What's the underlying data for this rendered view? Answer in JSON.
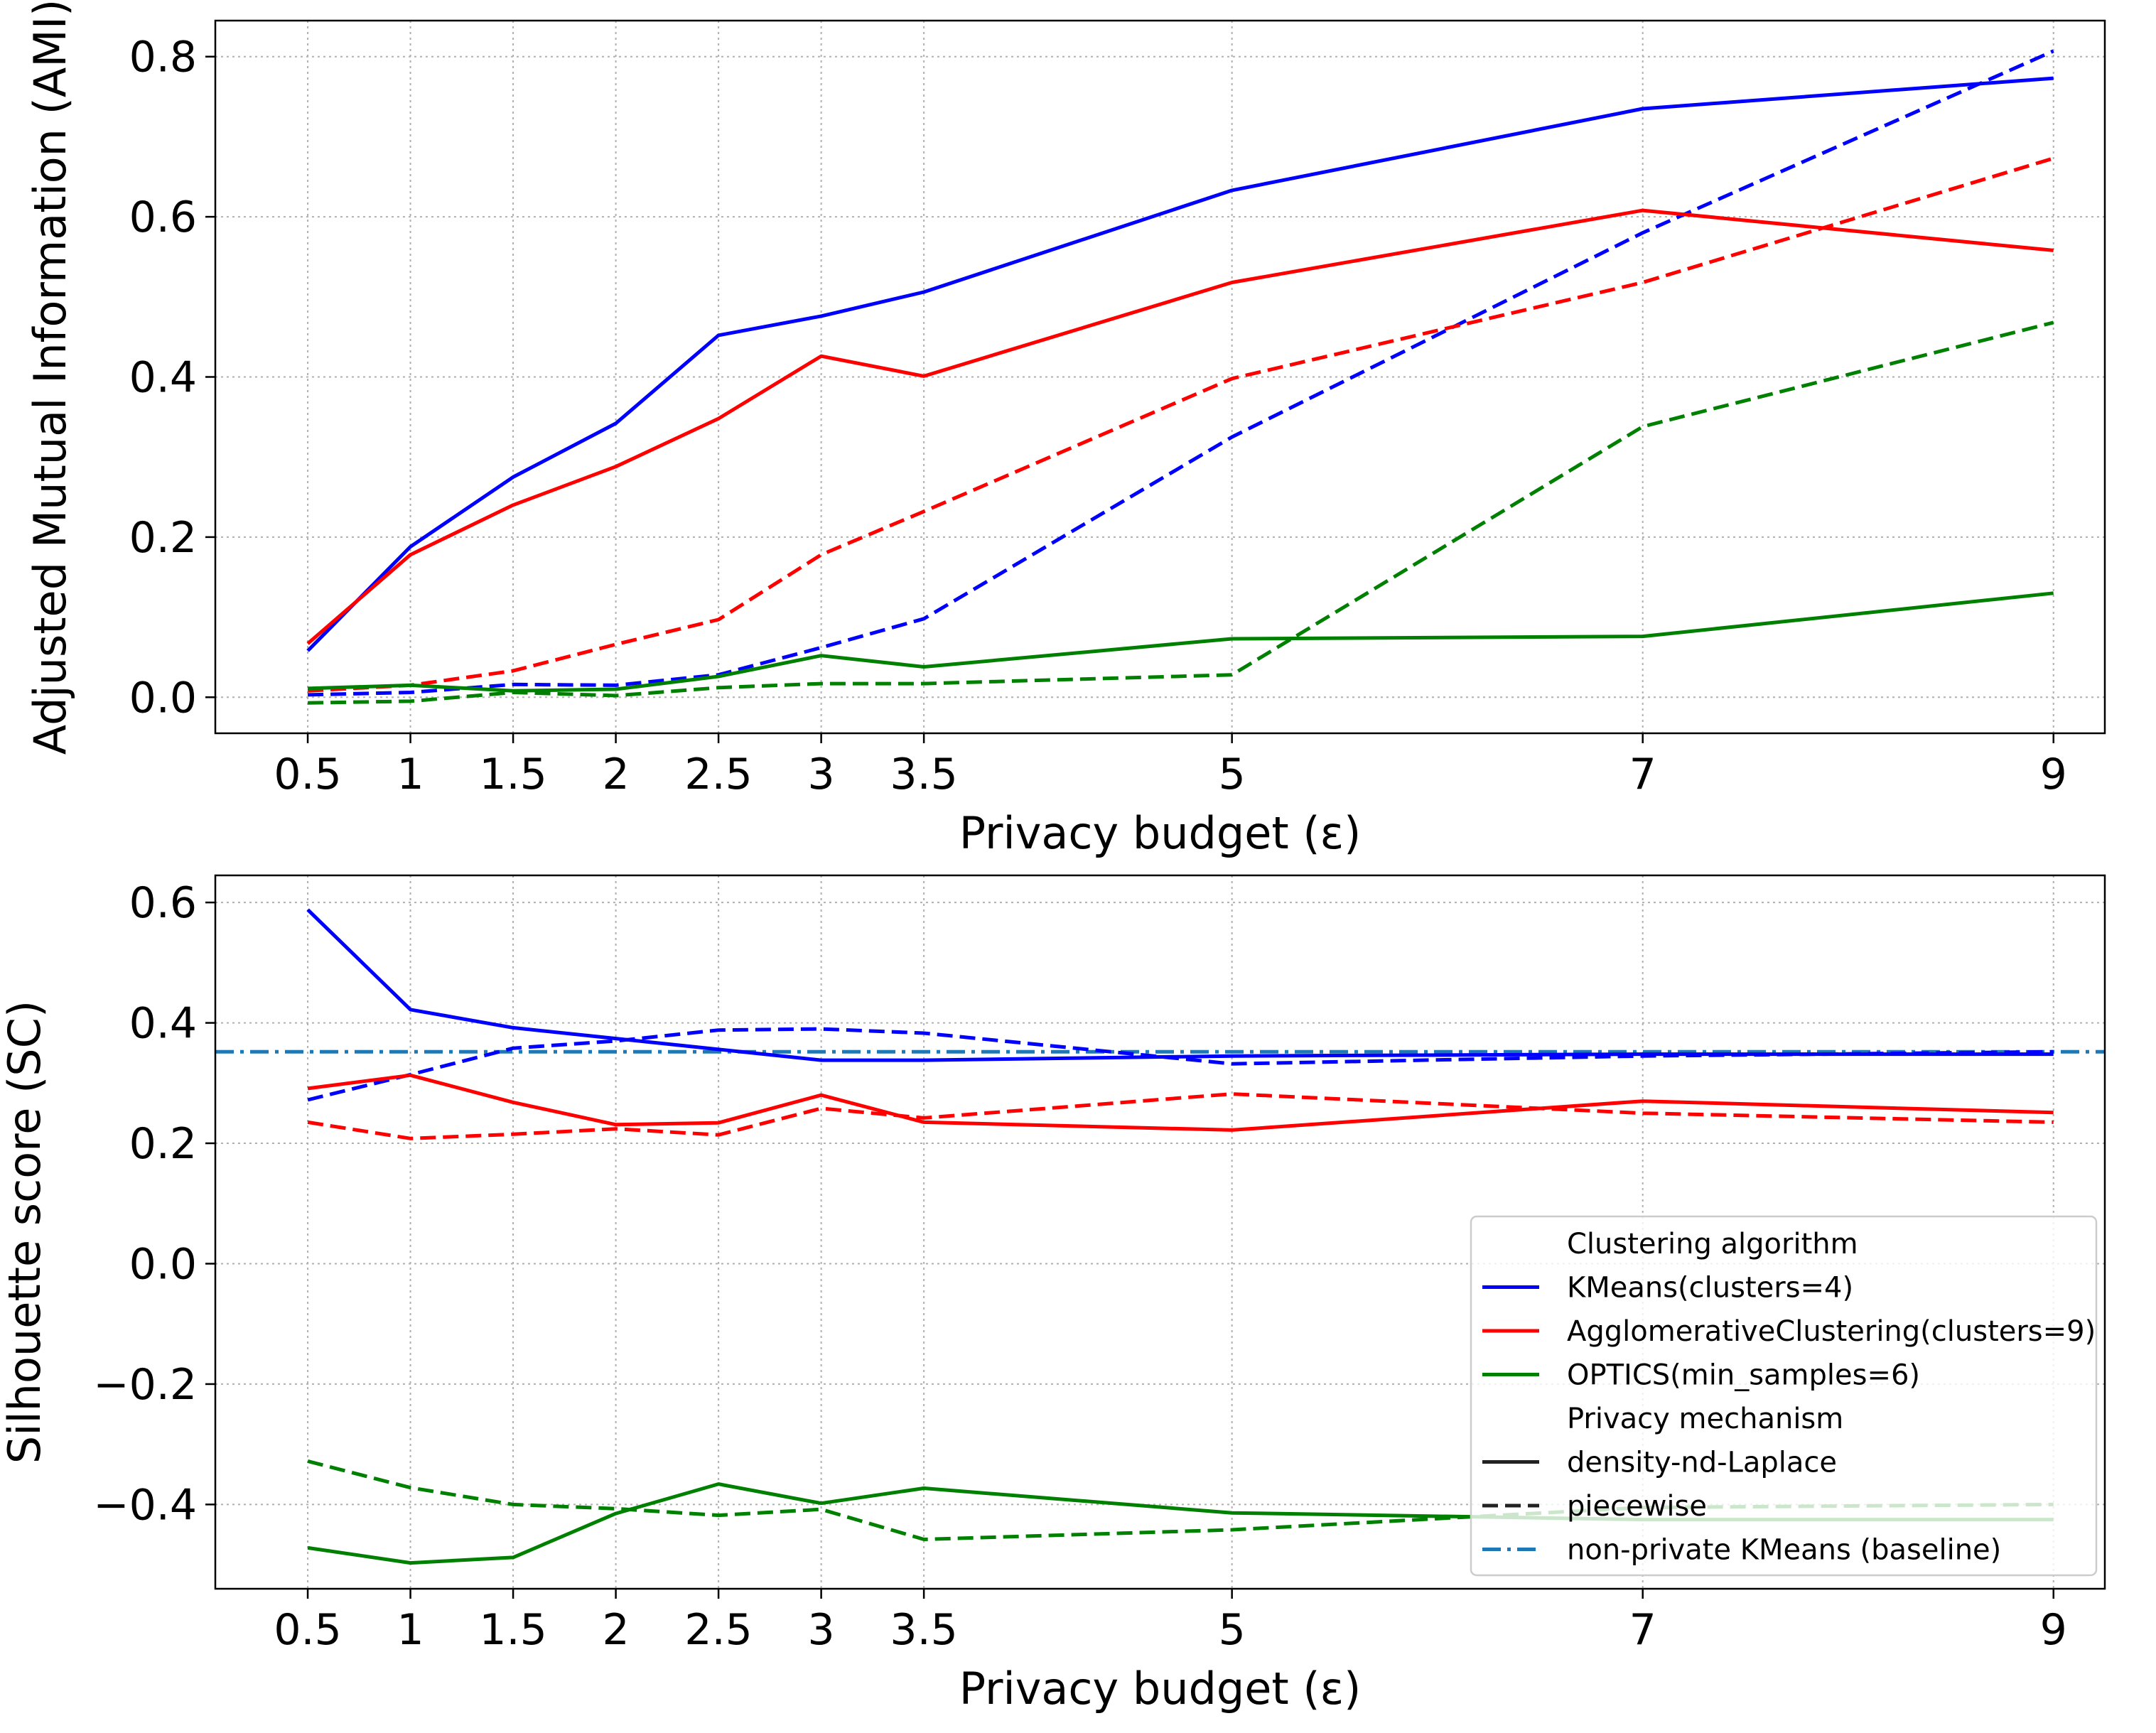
{
  "chart_data": [
    {
      "type": "line",
      "xlabel": "Privacy budget (ε)",
      "ylabel": "Adjusted Mutual Information (AMI)",
      "x": [
        0.5,
        1,
        1.5,
        2,
        2.5,
        3,
        3.5,
        5,
        7,
        9
      ],
      "xticks": [
        "0.5",
        "1",
        "1.5",
        "2",
        "2.5",
        "3",
        "3.5",
        "5",
        "7",
        "9"
      ],
      "yticks": [
        "0.0",
        "0.2",
        "0.4",
        "0.6",
        "0.8"
      ],
      "ytick_values": [
        0.0,
        0.2,
        0.4,
        0.6,
        0.8
      ],
      "xlim": [
        0.05,
        9.25
      ],
      "ylim": [
        -0.045,
        0.845
      ],
      "grid": true,
      "series": [
        {
          "algorithm": "KMeans(clusters=4)",
          "mechanism": "density-nd-Laplace",
          "color": "#0000ff",
          "dash": "solid",
          "values": [
            0.058,
            0.188,
            0.275,
            0.342,
            0.452,
            0.476,
            0.506,
            0.633,
            0.735,
            0.773
          ]
        },
        {
          "algorithm": "KMeans(clusters=4)",
          "mechanism": "piecewise",
          "color": "#0000ff",
          "dash": "dashed",
          "values": [
            0.003,
            0.006,
            0.016,
            0.015,
            0.028,
            0.062,
            0.098,
            0.325,
            0.58,
            0.807
          ]
        },
        {
          "algorithm": "AgglomerativeClustering(clusters=9)",
          "mechanism": "density-nd-Laplace",
          "color": "#ff0000",
          "dash": "solid",
          "values": [
            0.067,
            0.178,
            0.24,
            0.288,
            0.348,
            0.426,
            0.401,
            0.518,
            0.608,
            0.558
          ]
        },
        {
          "algorithm": "AgglomerativeClustering(clusters=9)",
          "mechanism": "piecewise",
          "color": "#ff0000",
          "dash": "dashed",
          "values": [
            0.008,
            0.015,
            0.033,
            0.066,
            0.097,
            0.178,
            0.232,
            0.398,
            0.518,
            0.673
          ]
        },
        {
          "algorithm": "OPTICS(min_samples=6)",
          "mechanism": "density-nd-Laplace",
          "color": "#008000",
          "dash": "solid",
          "values": [
            0.011,
            0.015,
            0.008,
            0.01,
            0.026,
            0.052,
            0.038,
            0.073,
            0.076,
            0.13
          ]
        },
        {
          "algorithm": "OPTICS(min_samples=6)",
          "mechanism": "piecewise",
          "color": "#008000",
          "dash": "dashed",
          "values": [
            -0.007,
            -0.005,
            0.006,
            0.002,
            0.012,
            0.017,
            0.017,
            0.028,
            0.338,
            0.468
          ]
        }
      ]
    },
    {
      "type": "line",
      "xlabel": "Privacy budget (ε)",
      "ylabel": "Silhouette score (SC)",
      "x": [
        0.5,
        1,
        1.5,
        2,
        2.5,
        3,
        3.5,
        5,
        7,
        9
      ],
      "xticks": [
        "0.5",
        "1",
        "1.5",
        "2",
        "2.5",
        "3",
        "3.5",
        "5",
        "7",
        "9"
      ],
      "yticks": [
        "0.6",
        "0.4",
        "0.2",
        "0.0",
        "−0.2",
        "−0.4"
      ],
      "ytick_values": [
        0.6,
        0.4,
        0.2,
        0.0,
        -0.2,
        -0.4
      ],
      "xlim": [
        0.05,
        9.25
      ],
      "ylim": [
        -0.54,
        0.645
      ],
      "grid": true,
      "baseline": {
        "label": "non-private KMeans (baseline)",
        "value": 0.352,
        "color": "#1f77b4",
        "dash": "dashdot"
      },
      "series": [
        {
          "algorithm": "KMeans(clusters=4)",
          "mechanism": "density-nd-Laplace",
          "color": "#0000ff",
          "dash": "solid",
          "values": [
            0.588,
            0.422,
            0.392,
            0.374,
            0.356,
            0.338,
            0.338,
            0.345,
            0.348,
            0.348
          ]
        },
        {
          "algorithm": "KMeans(clusters=4)",
          "mechanism": "piecewise",
          "color": "#0000ff",
          "dash": "dashed",
          "values": [
            0.272,
            0.314,
            0.358,
            0.37,
            0.388,
            0.39,
            0.383,
            0.332,
            0.345,
            0.352
          ]
        },
        {
          "algorithm": "AgglomerativeClustering(clusters=9)",
          "mechanism": "density-nd-Laplace",
          "color": "#ff0000",
          "dash": "solid",
          "values": [
            0.291,
            0.313,
            0.268,
            0.231,
            0.234,
            0.28,
            0.235,
            0.222,
            0.27,
            0.251
          ]
        },
        {
          "algorithm": "AgglomerativeClustering(clusters=9)",
          "mechanism": "piecewise",
          "color": "#ff0000",
          "dash": "dashed",
          "values": [
            0.235,
            0.208,
            0.215,
            0.224,
            0.214,
            0.258,
            0.242,
            0.282,
            0.25,
            0.235
          ]
        },
        {
          "algorithm": "OPTICS(min_samples=6)",
          "mechanism": "density-nd-Laplace",
          "color": "#008000",
          "dash": "solid",
          "values": [
            -0.472,
            -0.497,
            -0.488,
            -0.415,
            -0.366,
            -0.398,
            -0.373,
            -0.414,
            -0.425,
            -0.425
          ]
        },
        {
          "algorithm": "OPTICS(min_samples=6)",
          "mechanism": "piecewise",
          "color": "#008000",
          "dash": "dashed",
          "values": [
            -0.328,
            -0.372,
            -0.4,
            -0.407,
            -0.418,
            -0.408,
            -0.458,
            -0.442,
            -0.405,
            -0.4
          ]
        }
      ],
      "legend": {
        "placement": "lower right",
        "entries": [
          {
            "label": "Clustering algorithm",
            "kind": "header"
          },
          {
            "label": "KMeans(clusters=4)",
            "kind": "line",
            "color": "#0000ff",
            "dash": "solid"
          },
          {
            "label": "AgglomerativeClustering(clusters=9)",
            "kind": "line",
            "color": "#ff0000",
            "dash": "solid"
          },
          {
            "label": "OPTICS(min_samples=6)",
            "kind": "line",
            "color": "#008000",
            "dash": "solid"
          },
          {
            "label": "Privacy mechanism",
            "kind": "header"
          },
          {
            "label": "density-nd-Laplace",
            "kind": "line",
            "color": "#222222",
            "dash": "solid"
          },
          {
            "label": "piecewise",
            "kind": "line",
            "color": "#222222",
            "dash": "dashed"
          },
          {
            "label": "non-private KMeans (baseline)",
            "kind": "line",
            "color": "#1f77b4",
            "dash": "dashdot"
          }
        ]
      }
    }
  ]
}
